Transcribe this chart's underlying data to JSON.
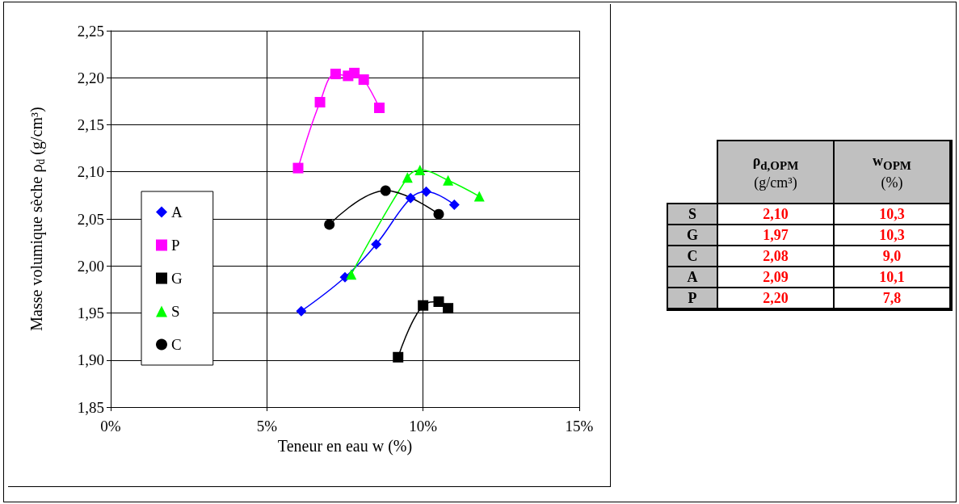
{
  "chart_data": [
    {
      "type": "line",
      "xlabel": "Teneur en eau w (%)",
      "ylabel": "Masse volumique sèche ρ$_{d}$ (g/cm³)",
      "xlim": [
        0,
        15
      ],
      "xticks": [
        {
          "value": 0,
          "label": "0%"
        },
        {
          "value": 5,
          "label": "5%"
        },
        {
          "value": 10,
          "label": "10%"
        },
        {
          "value": 15,
          "label": "15%"
        }
      ],
      "ylim": [
        1.85,
        2.25
      ],
      "yticks": [
        {
          "value": 1.85,
          "label": "1,85"
        },
        {
          "value": 1.9,
          "label": "1,90"
        },
        {
          "value": 1.95,
          "label": "1,95"
        },
        {
          "value": 2.0,
          "label": "2,00"
        },
        {
          "value": 2.05,
          "label": "2,05"
        },
        {
          "value": 2.1,
          "label": "2,10"
        },
        {
          "value": 2.15,
          "label": "2,15"
        },
        {
          "value": 2.2,
          "label": "2,20"
        },
        {
          "value": 2.25,
          "label": "2,25"
        }
      ],
      "grid": true,
      "legend": "left",
      "series": [
        {
          "name": "A",
          "color": "#0000ff",
          "marker": "diamond",
          "x": [
            6.1,
            7.5,
            8.5,
            9.6,
            10.1,
            11.0
          ],
          "values": [
            1.952,
            1.988,
            2.023,
            2.072,
            2.079,
            2.065
          ]
        },
        {
          "name": "P",
          "color": "#ff00ff",
          "marker": "square",
          "x": [
            6.0,
            6.7,
            7.2,
            7.6,
            7.8,
            8.1,
            8.6
          ],
          "values": [
            2.104,
            2.174,
            2.204,
            2.202,
            2.205,
            2.198,
            2.168
          ]
        },
        {
          "name": "G",
          "color": "#000000",
          "marker": "square",
          "x": [
            9.2,
            10.0,
            10.5,
            10.8
          ],
          "values": [
            1.903,
            1.958,
            1.962,
            1.955
          ]
        },
        {
          "name": "S",
          "color": "#00ff00",
          "marker": "triangle",
          "x": [
            7.7,
            9.5,
            9.9,
            10.8,
            11.8
          ],
          "values": [
            1.991,
            2.094,
            2.102,
            2.091,
            2.074
          ]
        },
        {
          "name": "C",
          "color": "#000000",
          "marker": "circle",
          "x": [
            7.0,
            8.8,
            10.5
          ],
          "values": [
            2.044,
            2.08,
            2.055
          ]
        }
      ]
    },
    {
      "type": "other",
      "categories": [
        "S",
        "G",
        "C",
        "A",
        "P"
      ],
      "annotations": [
        "ρ$_{d,OPM}$ (g/cm³)",
        "w$_{OPM}$ (%)",
        "2,10",
        "10,3",
        "1,97",
        "10,3",
        "2,08",
        "9,0",
        "2,09",
        "10,1",
        "2,20",
        "7,8"
      ]
    }
  ]
}
